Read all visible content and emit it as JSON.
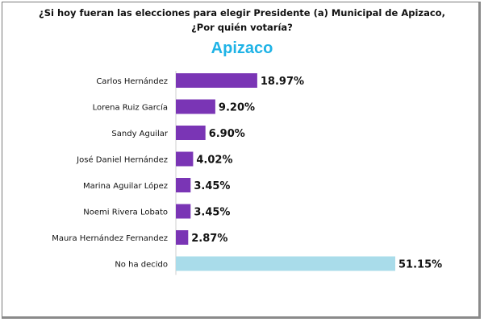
{
  "question": "¿Si hoy fueran las elecciones para elegir Presidente (a) Municipal de Apizaco, ¿Por quién votaría?",
  "chart_data": {
    "type": "bar",
    "orientation": "horizontal",
    "title": "¿Si hoy fueran las elecciones para elegir Presidente (a) Municipal de Apizaco, ¿Por quién votaría?",
    "subtitle": "Apizaco",
    "categories": [
      "Carlos Hernández",
      "Lorena Ruiz García",
      "Sandy Aguilar",
      "José Daniel Hernández",
      "Marina Aguilar López",
      "Noemi Rivera Lobato",
      "Maura Hernández Fernandez",
      "No ha decido"
    ],
    "values": [
      18.97,
      9.2,
      6.9,
      4.02,
      3.45,
      3.45,
      2.87,
      51.15
    ],
    "value_labels": [
      "18.97%",
      "9.20%",
      "6.90%",
      "4.02%",
      "3.45%",
      "3.45%",
      "2.87%",
      "51.15%"
    ],
    "colors": [
      "#7a35b5",
      "#7a35b5",
      "#7a35b5",
      "#7a35b5",
      "#7a35b5",
      "#7a35b5",
      "#7a35b5",
      "#a9dcea"
    ],
    "xlim": [
      0,
      51.15
    ],
    "grid": false,
    "legend": "none",
    "subtitle_color": "#1fb3e6"
  }
}
